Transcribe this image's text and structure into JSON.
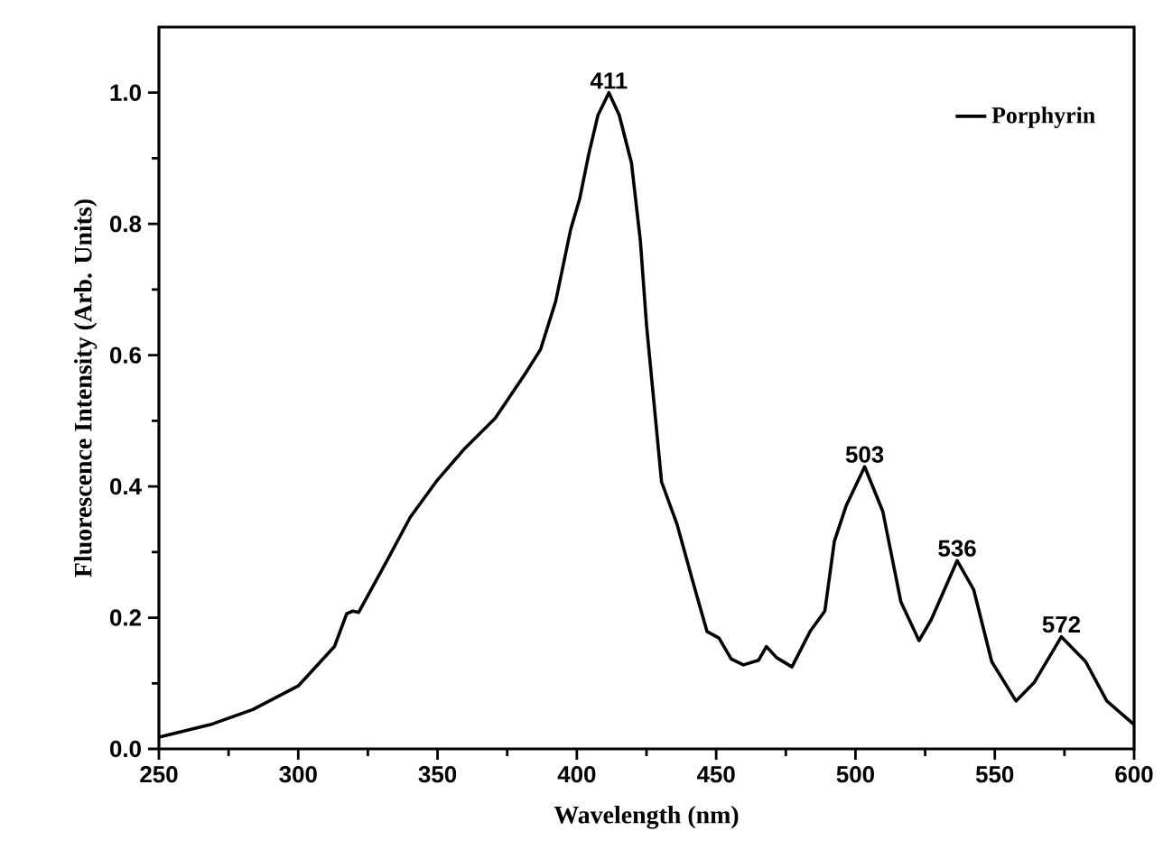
{
  "chart_data": {
    "type": "line",
    "xlabel": "Wavelength (nm)",
    "ylabel": "Fluorescence Intensity (Arb. Units)",
    "xlim": [
      250,
      600
    ],
    "ylim": [
      0,
      1.1
    ],
    "xticks": [
      250,
      300,
      350,
      400,
      450,
      500,
      550,
      600
    ],
    "yticks": [
      {
        "value": 0,
        "label": "0.0"
      },
      {
        "value": 0.2,
        "label": "0.2"
      },
      {
        "value": 0.4,
        "label": "0.4"
      },
      {
        "value": 0.6,
        "label": "0.6"
      },
      {
        "value": 0.8,
        "label": "0.8"
      },
      {
        "value": 1.0,
        "label": "1.0"
      }
    ],
    "legend": "top right",
    "grid": false,
    "marker": "none",
    "line_style": "solid",
    "series": [
      {
        "name": "Porphyrin",
        "color": "#000000",
        "x": [
          250,
          268.5,
          283.7,
          300,
          313,
          317.4,
          319.6,
          321.7,
          331.5,
          340.2,
          350,
          359.8,
          370.7,
          381.5,
          387,
          392.4,
          397.8,
          401,
          404.3,
          407.6,
          411.5,
          415.2,
          419.6,
          422.8,
          425,
          430.4,
          435.9,
          441.3,
          446.7,
          451,
          455.4,
          459.8,
          465.2,
          468,
          471.7,
          477.2,
          483.7,
          489,
          492.4,
          496.7,
          503.3,
          509.8,
          516.3,
          522.8,
          527.2,
          536.5,
          542.4,
          548.9,
          557.6,
          564.1,
          573.9,
          582.6,
          590.2,
          600
        ],
        "values": [
          0.018,
          0.037,
          0.06,
          0.096,
          0.156,
          0.206,
          0.21,
          0.208,
          0.284,
          0.353,
          0.41,
          0.458,
          0.504,
          0.572,
          0.609,
          0.682,
          0.792,
          0.838,
          0.907,
          0.966,
          1.0,
          0.966,
          0.893,
          0.774,
          0.646,
          0.407,
          0.343,
          0.26,
          0.179,
          0.169,
          0.137,
          0.128,
          0.135,
          0.156,
          0.139,
          0.125,
          0.179,
          0.21,
          0.316,
          0.371,
          0.43,
          0.362,
          0.224,
          0.165,
          0.197,
          0.287,
          0.243,
          0.133,
          0.073,
          0.101,
          0.171,
          0.133,
          0.073,
          0.037
        ]
      }
    ],
    "annotations": [
      {
        "text": "411",
        "x": 411.5,
        "y": 1.0
      },
      {
        "text": "503",
        "x": 503.3,
        "y": 0.43
      },
      {
        "text": "536",
        "x": 536.5,
        "y": 0.287
      },
      {
        "text": "572",
        "x": 573.9,
        "y": 0.171
      }
    ]
  }
}
